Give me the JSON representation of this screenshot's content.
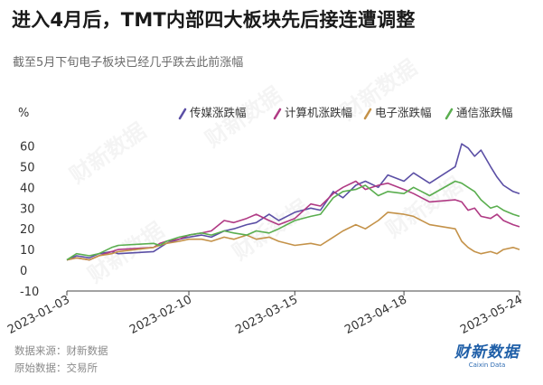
{
  "title": "进入4月后，TMT内部四大板块先后接连遭调整",
  "subtitle": "截至5月下旬电子板块已经几乎跌去此前涨幅",
  "source_line1": "数据来源：财新数据",
  "source_line2": "原始数据：交易所",
  "logo": {
    "main": "财新数据",
    "sub": "Caixin Data"
  },
  "watermark_text": "财新数据",
  "chart_data": {
    "type": "line",
    "ylabel": "%",
    "ylim": [
      -10,
      65
    ],
    "yticks": [
      -10,
      0,
      10,
      20,
      30,
      40,
      50,
      60
    ],
    "x_start": "2023-01-03",
    "x_end": "2023-05-24",
    "xticks": [
      "2023-01-03",
      "2023-02-10",
      "2023-03-15",
      "2023-04-18",
      "2023-05-24"
    ],
    "legend_position": "top-right",
    "series": [
      {
        "name": "传媒涨跌幅",
        "color": "#5b4fa5",
        "points": [
          [
            "2023-01-03",
            5
          ],
          [
            "2023-01-06",
            7
          ],
          [
            "2023-01-10",
            6
          ],
          [
            "2023-01-13",
            8
          ],
          [
            "2023-01-17",
            9
          ],
          [
            "2023-01-19",
            8
          ],
          [
            "2023-01-30",
            9
          ],
          [
            "2023-02-01",
            11
          ],
          [
            "2023-02-03",
            13
          ],
          [
            "2023-02-07",
            15
          ],
          [
            "2023-02-10",
            16
          ],
          [
            "2023-02-14",
            17
          ],
          [
            "2023-02-17",
            16
          ],
          [
            "2023-02-21",
            19
          ],
          [
            "2023-02-24",
            20
          ],
          [
            "2023-02-28",
            22
          ],
          [
            "2023-03-03",
            23
          ],
          [
            "2023-03-07",
            27
          ],
          [
            "2023-03-10",
            24
          ],
          [
            "2023-03-15",
            28
          ],
          [
            "2023-03-20",
            30
          ],
          [
            "2023-03-23",
            29
          ],
          [
            "2023-03-27",
            38
          ],
          [
            "2023-03-30",
            35
          ],
          [
            "2023-04-03",
            41
          ],
          [
            "2023-04-06",
            43
          ],
          [
            "2023-04-10",
            40
          ],
          [
            "2023-04-13",
            46
          ],
          [
            "2023-04-18",
            43
          ],
          [
            "2023-04-21",
            47
          ],
          [
            "2023-04-26",
            42
          ],
          [
            "2023-05-04",
            50
          ],
          [
            "2023-05-06",
            61
          ],
          [
            "2023-05-08",
            59
          ],
          [
            "2023-05-10",
            55
          ],
          [
            "2023-05-12",
            58
          ],
          [
            "2023-05-15",
            50
          ],
          [
            "2023-05-17",
            45
          ],
          [
            "2023-05-19",
            41
          ],
          [
            "2023-05-22",
            38
          ],
          [
            "2023-05-24",
            37
          ]
        ]
      },
      {
        "name": "计算机涨跌幅",
        "color": "#b03a84",
        "points": [
          [
            "2023-01-03",
            5
          ],
          [
            "2023-01-06",
            6
          ],
          [
            "2023-01-10",
            5
          ],
          [
            "2023-01-13",
            7
          ],
          [
            "2023-01-17",
            9
          ],
          [
            "2023-01-19",
            10
          ],
          [
            "2023-01-30",
            11
          ],
          [
            "2023-02-01",
            13
          ],
          [
            "2023-02-03",
            14
          ],
          [
            "2023-02-07",
            15
          ],
          [
            "2023-02-10",
            17
          ],
          [
            "2023-02-14",
            18
          ],
          [
            "2023-02-17",
            19
          ],
          [
            "2023-02-21",
            24
          ],
          [
            "2023-02-24",
            23
          ],
          [
            "2023-02-28",
            25
          ],
          [
            "2023-03-03",
            27
          ],
          [
            "2023-03-07",
            24
          ],
          [
            "2023-03-10",
            22
          ],
          [
            "2023-03-15",
            25
          ],
          [
            "2023-03-20",
            32
          ],
          [
            "2023-03-23",
            31
          ],
          [
            "2023-03-27",
            37
          ],
          [
            "2023-03-30",
            40
          ],
          [
            "2023-04-03",
            43
          ],
          [
            "2023-04-06",
            39
          ],
          [
            "2023-04-10",
            41
          ],
          [
            "2023-04-13",
            42
          ],
          [
            "2023-04-18",
            39
          ],
          [
            "2023-04-21",
            37
          ],
          [
            "2023-04-26",
            33
          ],
          [
            "2023-05-04",
            34
          ],
          [
            "2023-05-06",
            33
          ],
          [
            "2023-05-08",
            29
          ],
          [
            "2023-05-10",
            30
          ],
          [
            "2023-05-12",
            26
          ],
          [
            "2023-05-15",
            25
          ],
          [
            "2023-05-17",
            27
          ],
          [
            "2023-05-19",
            24
          ],
          [
            "2023-05-22",
            22
          ],
          [
            "2023-05-24",
            21
          ]
        ]
      },
      {
        "name": "电子涨跌幅",
        "color": "#c49249",
        "points": [
          [
            "2023-01-03",
            5
          ],
          [
            "2023-01-06",
            6
          ],
          [
            "2023-01-10",
            5
          ],
          [
            "2023-01-13",
            7
          ],
          [
            "2023-01-17",
            8
          ],
          [
            "2023-01-19",
            9
          ],
          [
            "2023-01-30",
            11
          ],
          [
            "2023-02-01",
            12
          ],
          [
            "2023-02-03",
            13
          ],
          [
            "2023-02-07",
            14
          ],
          [
            "2023-02-10",
            15
          ],
          [
            "2023-02-14",
            15
          ],
          [
            "2023-02-17",
            14
          ],
          [
            "2023-02-21",
            16
          ],
          [
            "2023-02-24",
            15
          ],
          [
            "2023-02-28",
            17
          ],
          [
            "2023-03-03",
            15
          ],
          [
            "2023-03-07",
            16
          ],
          [
            "2023-03-10",
            14
          ],
          [
            "2023-03-15",
            12
          ],
          [
            "2023-03-20",
            13
          ],
          [
            "2023-03-23",
            12
          ],
          [
            "2023-03-27",
            16
          ],
          [
            "2023-03-30",
            19
          ],
          [
            "2023-04-03",
            22
          ],
          [
            "2023-04-06",
            20
          ],
          [
            "2023-04-10",
            24
          ],
          [
            "2023-04-13",
            28
          ],
          [
            "2023-04-18",
            27
          ],
          [
            "2023-04-21",
            26
          ],
          [
            "2023-04-26",
            22
          ],
          [
            "2023-05-04",
            20
          ],
          [
            "2023-05-06",
            14
          ],
          [
            "2023-05-08",
            11
          ],
          [
            "2023-05-10",
            9
          ],
          [
            "2023-05-12",
            8
          ],
          [
            "2023-05-15",
            9
          ],
          [
            "2023-05-17",
            8
          ],
          [
            "2023-05-19",
            10
          ],
          [
            "2023-05-22",
            11
          ],
          [
            "2023-05-24",
            10
          ]
        ]
      },
      {
        "name": "通信涨跌幅",
        "color": "#5aae4f",
        "points": [
          [
            "2023-01-03",
            5
          ],
          [
            "2023-01-06",
            8
          ],
          [
            "2023-01-10",
            7
          ],
          [
            "2023-01-13",
            8
          ],
          [
            "2023-01-17",
            11
          ],
          [
            "2023-01-19",
            12
          ],
          [
            "2023-01-30",
            13
          ],
          [
            "2023-02-01",
            12
          ],
          [
            "2023-02-03",
            14
          ],
          [
            "2023-02-07",
            16
          ],
          [
            "2023-02-10",
            17
          ],
          [
            "2023-02-14",
            18
          ],
          [
            "2023-02-17",
            17
          ],
          [
            "2023-02-21",
            19
          ],
          [
            "2023-02-24",
            18
          ],
          [
            "2023-02-28",
            17
          ],
          [
            "2023-03-03",
            19
          ],
          [
            "2023-03-07",
            18
          ],
          [
            "2023-03-10",
            20
          ],
          [
            "2023-03-15",
            24
          ],
          [
            "2023-03-20",
            26
          ],
          [
            "2023-03-23",
            27
          ],
          [
            "2023-03-27",
            35
          ],
          [
            "2023-03-30",
            38
          ],
          [
            "2023-04-03",
            39
          ],
          [
            "2023-04-06",
            41
          ],
          [
            "2023-04-10",
            36
          ],
          [
            "2023-04-13",
            38
          ],
          [
            "2023-04-18",
            37
          ],
          [
            "2023-04-21",
            40
          ],
          [
            "2023-04-26",
            36
          ],
          [
            "2023-05-04",
            43
          ],
          [
            "2023-05-06",
            42
          ],
          [
            "2023-05-08",
            40
          ],
          [
            "2023-05-10",
            38
          ],
          [
            "2023-05-12",
            34
          ],
          [
            "2023-05-15",
            30
          ],
          [
            "2023-05-17",
            31
          ],
          [
            "2023-05-19",
            29
          ],
          [
            "2023-05-22",
            27
          ],
          [
            "2023-05-24",
            26
          ]
        ]
      }
    ]
  }
}
